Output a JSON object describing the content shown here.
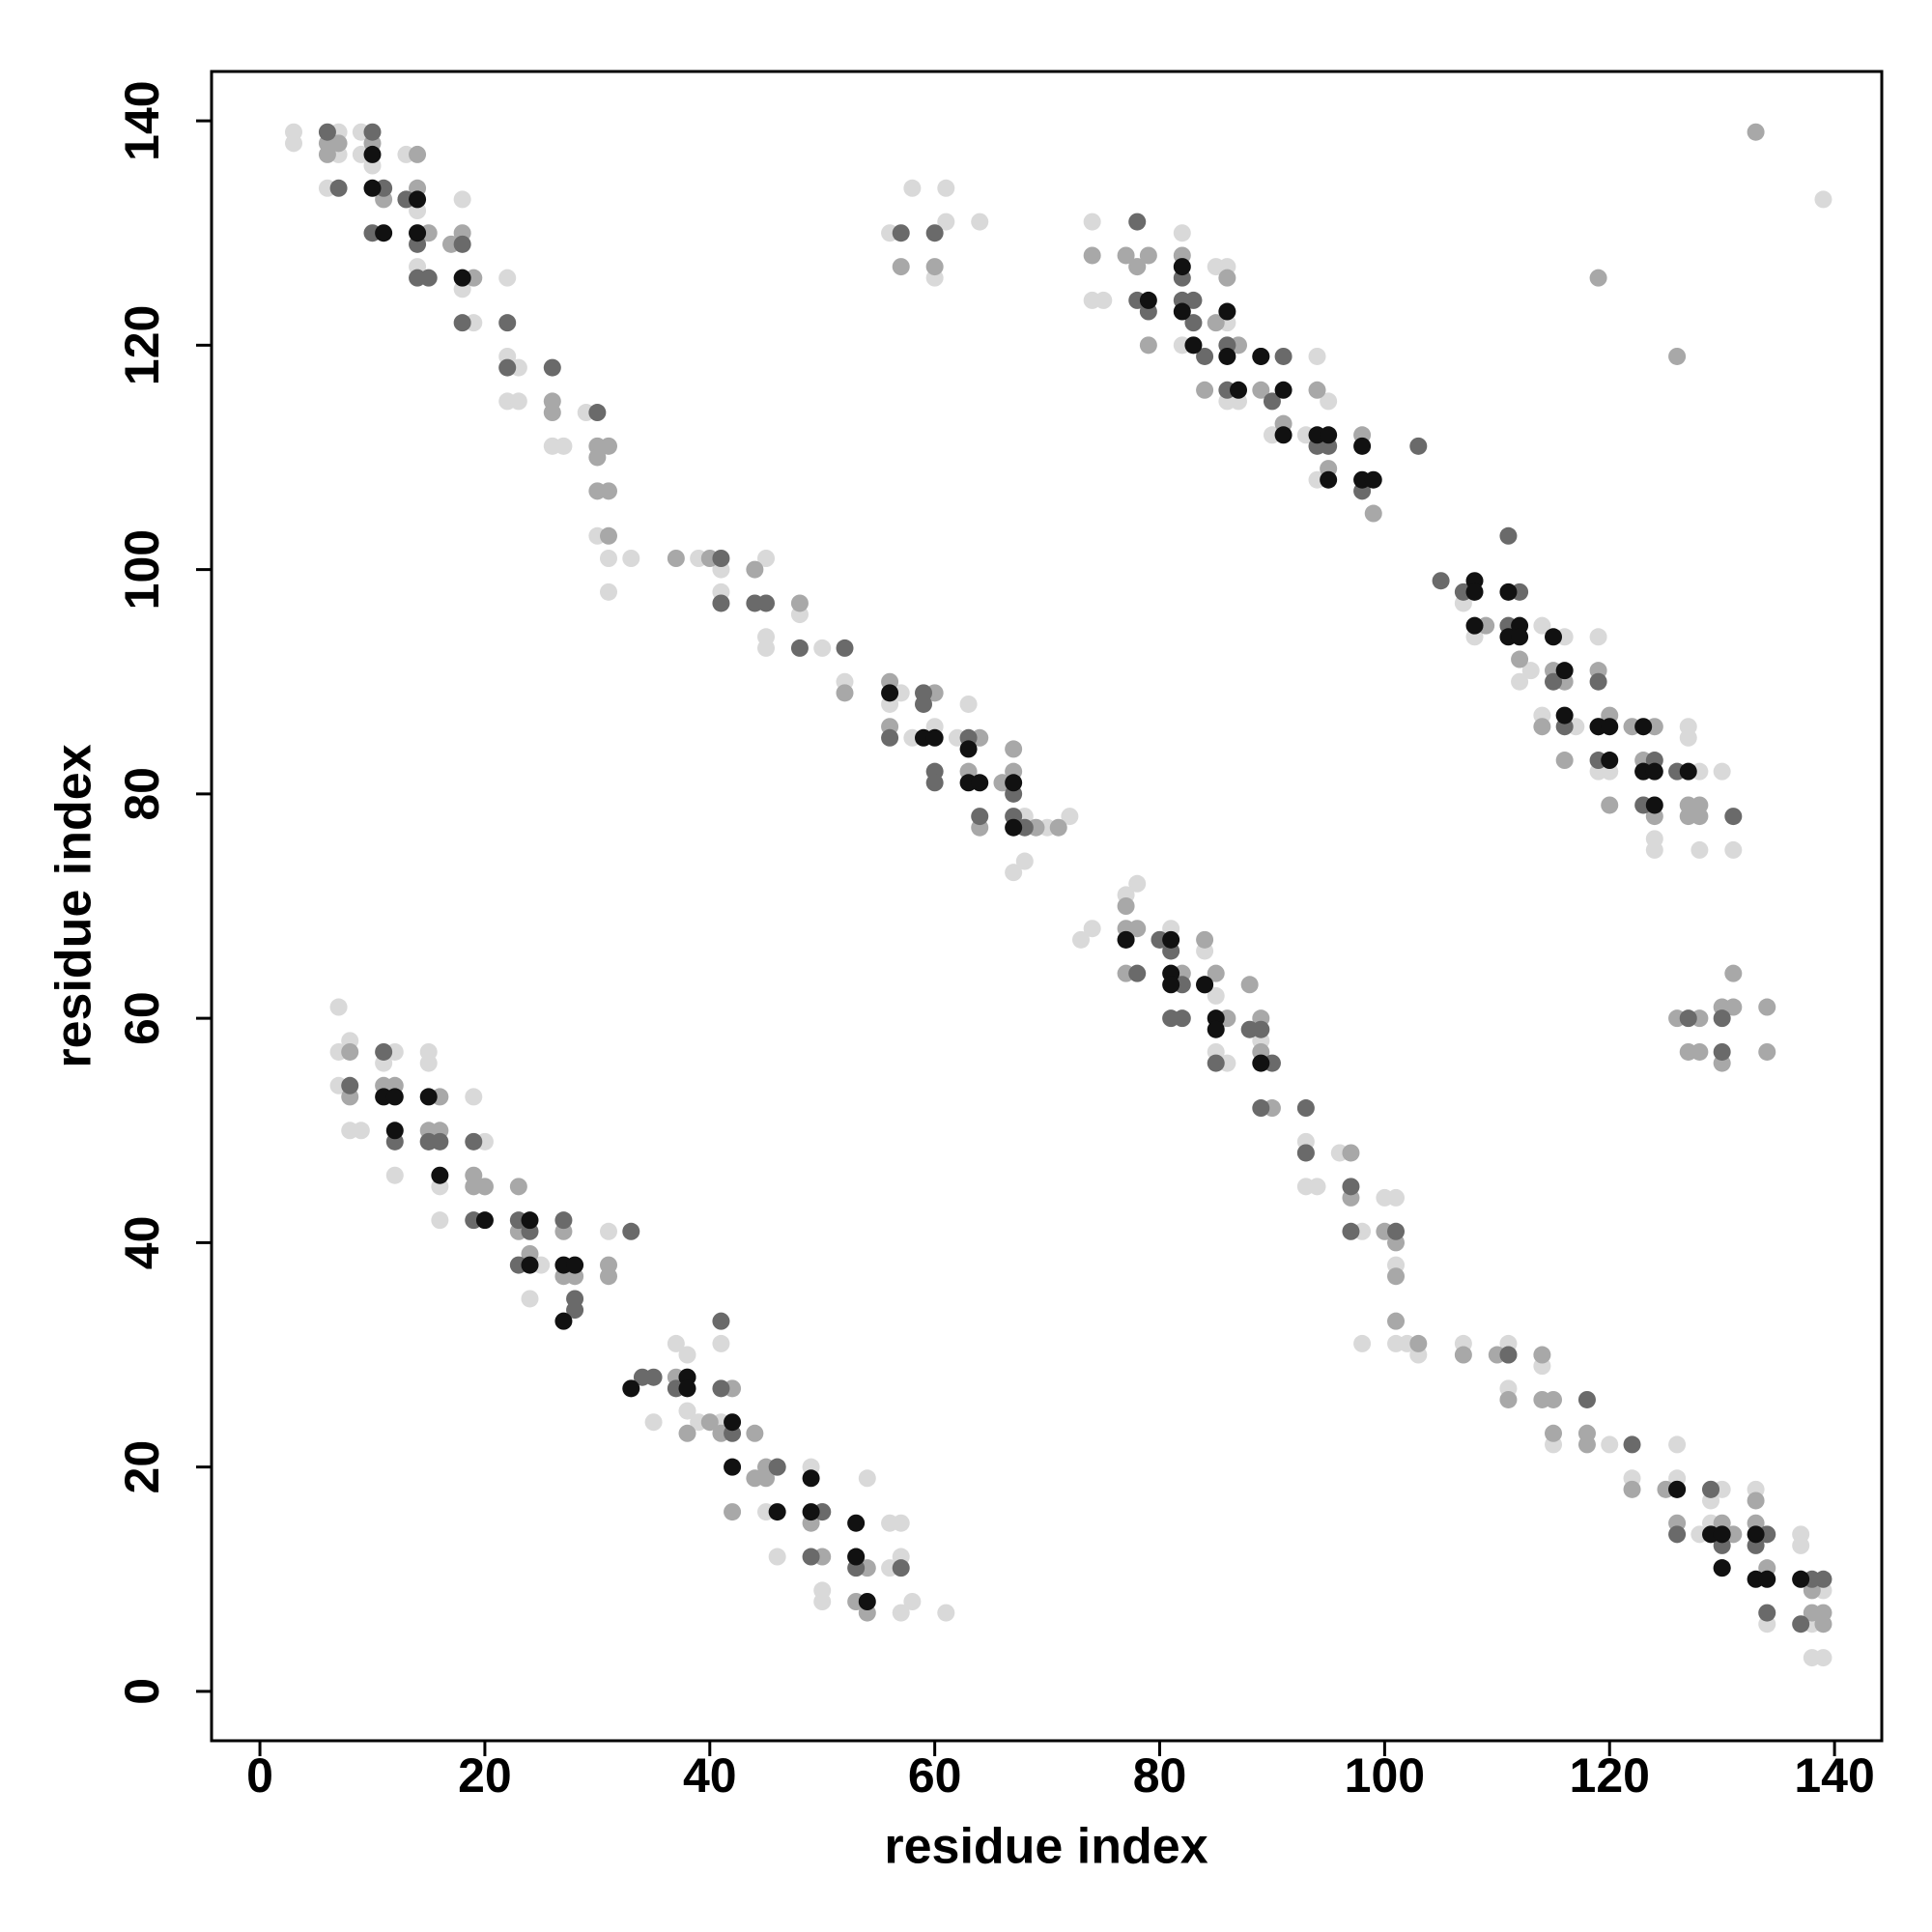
{
  "chart_data": {
    "type": "scatter",
    "xlabel": "residue index",
    "ylabel": "residue index",
    "xlim": [
      -4.3,
      144.2
    ],
    "ylim": [
      -4.4,
      144.4
    ],
    "xticks": [
      0,
      20,
      40,
      60,
      80,
      100,
      120,
      140
    ],
    "yticks": [
      0,
      20,
      40,
      60,
      80,
      100,
      120,
      140
    ],
    "grid": false,
    "series": [
      {
        "color": "#d9d9d9",
        "x": [
          3,
          3,
          6,
          7,
          7,
          9,
          9,
          10,
          13,
          14,
          14,
          18,
          18,
          19,
          22,
          22,
          22,
          23,
          23,
          26,
          27,
          29,
          30,
          31,
          31,
          33,
          39,
          41,
          41,
          45,
          45,
          45,
          48,
          50,
          52,
          56,
          57,
          58,
          60,
          62,
          63,
          66,
          67,
          68,
          68,
          70,
          72,
          74,
          74,
          75,
          78,
          82,
          82,
          85,
          86,
          86,
          86,
          87,
          90,
          93,
          94,
          95,
          94,
          58,
          61,
          60,
          61,
          64,
          56,
          107,
          108,
          112,
          113,
          114,
          114,
          116,
          117,
          119,
          119,
          120,
          123,
          124,
          124,
          127,
          127,
          128,
          128,
          130,
          131,
          73,
          74,
          77,
          78,
          81,
          84,
          85,
          85,
          86,
          89,
          93,
          93,
          94,
          96,
          98,
          100,
          101,
          101,
          98,
          101,
          102,
          103,
          107,
          111,
          111,
          114,
          115,
          118,
          120,
          122,
          126,
          126,
          128,
          129,
          129,
          130,
          133,
          134,
          137,
          137,
          138,
          138,
          139,
          139,
          7,
          7,
          7,
          8,
          8,
          9,
          11,
          12,
          12,
          15,
          15,
          16,
          16,
          19,
          20,
          19,
          20,
          25,
          24,
          28,
          31,
          35,
          37,
          38,
          38,
          39,
          41,
          45,
          46,
          49,
          50,
          50,
          54,
          56,
          57,
          56,
          57,
          57,
          58,
          61,
          41,
          139
        ],
        "values": [
          139,
          138,
          134,
          139,
          137,
          139,
          137,
          136,
          137,
          132,
          127,
          133,
          125,
          122,
          126,
          119,
          115,
          118,
          115,
          111,
          111,
          114,
          103,
          101,
          98,
          101,
          101,
          98,
          100,
          101,
          94,
          93,
          96,
          93,
          90,
          88,
          89,
          85,
          86,
          85,
          88,
          81,
          73,
          74,
          78,
          77,
          78,
          131,
          124,
          124,
          127,
          130,
          120,
          127,
          127,
          122,
          115,
          115,
          112,
          112,
          119,
          115,
          108,
          134,
          134,
          126,
          131,
          131,
          130,
          97,
          94,
          90,
          91,
          95,
          87,
          94,
          86,
          94,
          82,
          82,
          86,
          76,
          75,
          86,
          85,
          82,
          75,
          82,
          75,
          67,
          68,
          71,
          72,
          68,
          66,
          62,
          57,
          56,
          58,
          49,
          45,
          45,
          48,
          41,
          44,
          44,
          38,
          31,
          31,
          31,
          30,
          31,
          31,
          27,
          29,
          22,
          23,
          22,
          19,
          22,
          19,
          14,
          15,
          17,
          18,
          18,
          6,
          14,
          13,
          3,
          6,
          3,
          9,
          61,
          57,
          54,
          58,
          50,
          50,
          56,
          57,
          46,
          57,
          56,
          45,
          42,
          53,
          49,
          42,
          45,
          38,
          35,
          37,
          41,
          24,
          31,
          30,
          25,
          24,
          31,
          16,
          12,
          20,
          9,
          8,
          19,
          15,
          15,
          11,
          12,
          7,
          8,
          7,
          24,
          133
        ]
      },
      {
        "color": "#a8a8a8",
        "x": [
          6,
          6,
          7,
          10,
          11,
          13,
          14,
          14,
          15,
          17,
          18,
          19,
          26,
          26,
          30,
          30,
          30,
          31,
          31,
          31,
          14,
          37,
          40,
          44,
          48,
          52,
          56,
          56,
          60,
          63,
          64,
          64,
          66,
          67,
          67,
          69,
          71,
          74,
          77,
          78,
          79,
          79,
          82,
          84,
          85,
          86,
          87,
          89,
          91,
          94,
          95,
          98,
          99,
          57,
          60,
          119,
          126,
          133,
          109,
          112,
          114,
          115,
          116,
          116,
          119,
          120,
          120,
          122,
          123,
          124,
          124,
          127,
          127,
          128,
          128,
          77,
          77,
          77,
          78,
          80,
          82,
          84,
          85,
          86,
          88,
          89,
          89,
          90,
          93,
          97,
          97,
          100,
          101,
          101,
          101,
          103,
          107,
          110,
          111,
          111,
          114,
          114,
          115,
          115,
          118,
          118,
          122,
          125,
          126,
          129,
          130,
          131,
          133,
          133,
          134,
          137,
          138,
          139,
          139,
          138,
          126,
          127,
          128,
          128,
          130,
          131,
          130,
          131,
          134,
          134,
          8,
          8,
          11,
          12,
          15,
          16,
          16,
          15,
          19,
          20,
          19,
          23,
          23,
          24,
          27,
          28,
          27,
          31,
          31,
          37,
          38,
          40,
          41,
          42,
          44,
          44,
          45,
          45,
          46,
          49,
          50,
          50,
          53,
          54,
          53,
          54,
          42
        ],
        "values": [
          138,
          137,
          138,
          138,
          133,
          133,
          137,
          134,
          130,
          129,
          130,
          126,
          115,
          114,
          111,
          110,
          107,
          111,
          107,
          103,
          130,
          101,
          101,
          100,
          97,
          89,
          86,
          90,
          89,
          82,
          85,
          77,
          81,
          84,
          82,
          77,
          77,
          128,
          128,
          127,
          128,
          120,
          128,
          116,
          122,
          126,
          120,
          116,
          113,
          116,
          109,
          112,
          105,
          127,
          127,
          126,
          119,
          139,
          95,
          92,
          86,
          91,
          90,
          83,
          91,
          87,
          79,
          86,
          83,
          86,
          78,
          78,
          79,
          79,
          78,
          70,
          68,
          64,
          68,
          67,
          64,
          67,
          64,
          60,
          63,
          60,
          57,
          52,
          48,
          48,
          44,
          41,
          40,
          37,
          33,
          31,
          30,
          30,
          30,
          26,
          30,
          26,
          23,
          26,
          22,
          23,
          18,
          18,
          15,
          18,
          15,
          14,
          17,
          15,
          11,
          10,
          7,
          7,
          6,
          9,
          60,
          57,
          60,
          57,
          61,
          61,
          56,
          64,
          61,
          57,
          57,
          53,
          54,
          54,
          50,
          53,
          50,
          49,
          46,
          45,
          45,
          45,
          41,
          39,
          41,
          37,
          37,
          38,
          37,
          28,
          23,
          24,
          23,
          27,
          23,
          19,
          20,
          19,
          20,
          15,
          16,
          12,
          12,
          11,
          8,
          7,
          16
        ]
      },
      {
        "color": "#6a6a6a",
        "x": [
          6,
          7,
          10,
          10,
          11,
          13,
          14,
          14,
          15,
          18,
          18,
          22,
          22,
          26,
          30,
          41,
          41,
          44,
          45,
          48,
          52,
          56,
          59,
          59,
          60,
          60,
          63,
          64,
          67,
          68,
          67,
          78,
          78,
          79,
          82,
          82,
          83,
          83,
          84,
          86,
          86,
          89,
          90,
          91,
          94,
          95,
          98,
          103,
          57,
          60,
          105,
          107,
          111,
          111,
          112,
          115,
          116,
          119,
          119,
          119,
          123,
          123,
          124,
          126,
          131,
          77,
          78,
          80,
          81,
          81,
          82,
          82,
          84,
          85,
          88,
          89,
          89,
          90,
          93,
          93,
          97,
          97,
          101,
          111,
          118,
          122,
          126,
          126,
          129,
          130,
          130,
          133,
          134,
          134,
          137,
          138,
          139,
          127,
          130,
          130,
          8,
          11,
          12,
          15,
          16,
          19,
          19,
          23,
          23,
          24,
          27,
          28,
          28,
          33,
          34,
          35,
          37,
          38,
          41,
          42,
          41,
          46,
          49,
          50,
          53,
          57
        ],
        "values": [
          139,
          134,
          139,
          130,
          134,
          133,
          129,
          126,
          126,
          129,
          122,
          122,
          118,
          118,
          114,
          101,
          97,
          97,
          97,
          93,
          93,
          85,
          88,
          89,
          82,
          81,
          85,
          78,
          80,
          77,
          78,
          131,
          124,
          123,
          126,
          124,
          124,
          122,
          119,
          120,
          116,
          119,
          115,
          119,
          111,
          111,
          107,
          111,
          130,
          130,
          99,
          98,
          103,
          95,
          98,
          90,
          86,
          90,
          86,
          83,
          79,
          82,
          83,
          82,
          78,
          67,
          64,
          67,
          66,
          60,
          60,
          63,
          63,
          56,
          59,
          59,
          52,
          56,
          52,
          48,
          45,
          41,
          41,
          30,
          26,
          22,
          18,
          14,
          18,
          11,
          13,
          13,
          14,
          7,
          6,
          10,
          10,
          60,
          60,
          57,
          54,
          57,
          49,
          49,
          49,
          42,
          49,
          42,
          38,
          41,
          42,
          34,
          35,
          41,
          28,
          28,
          27,
          28,
          27,
          23,
          33,
          20,
          12,
          16,
          11,
          11
        ]
      },
      {
        "color": "#111111",
        "x": [
          10,
          10,
          11,
          14,
          14,
          18,
          56,
          59,
          60,
          63,
          63,
          64,
          67,
          67,
          79,
          82,
          82,
          83,
          86,
          86,
          87,
          89,
          91,
          91,
          94,
          95,
          95,
          98,
          98,
          99,
          108,
          108,
          108,
          111,
          111,
          112,
          112,
          115,
          116,
          116,
          119,
          120,
          120,
          123,
          123,
          124,
          124,
          127,
          77,
          81,
          81,
          81,
          84,
          85,
          85,
          89,
          126,
          129,
          130,
          130,
          133,
          133,
          134,
          137,
          11,
          12,
          12,
          15,
          16,
          20,
          24,
          24,
          27,
          27,
          28,
          33,
          38,
          38,
          42,
          42,
          46,
          49,
          49,
          53,
          53,
          54
        ],
        "values": [
          137,
          134,
          130,
          133,
          130,
          126,
          89,
          85,
          85,
          84,
          81,
          81,
          81,
          77,
          124,
          127,
          123,
          120,
          123,
          119,
          116,
          119,
          116,
          112,
          112,
          112,
          108,
          111,
          108,
          108,
          99,
          98,
          95,
          98,
          94,
          95,
          94,
          94,
          91,
          87,
          86,
          86,
          83,
          86,
          82,
          82,
          79,
          82,
          67,
          67,
          64,
          63,
          63,
          60,
          59,
          56,
          18,
          14,
          14,
          11,
          14,
          10,
          10,
          10,
          53,
          53,
          50,
          53,
          46,
          42,
          42,
          38,
          38,
          33,
          38,
          27,
          28,
          27,
          24,
          20,
          16,
          19,
          16,
          15,
          12,
          8
        ]
      }
    ]
  }
}
